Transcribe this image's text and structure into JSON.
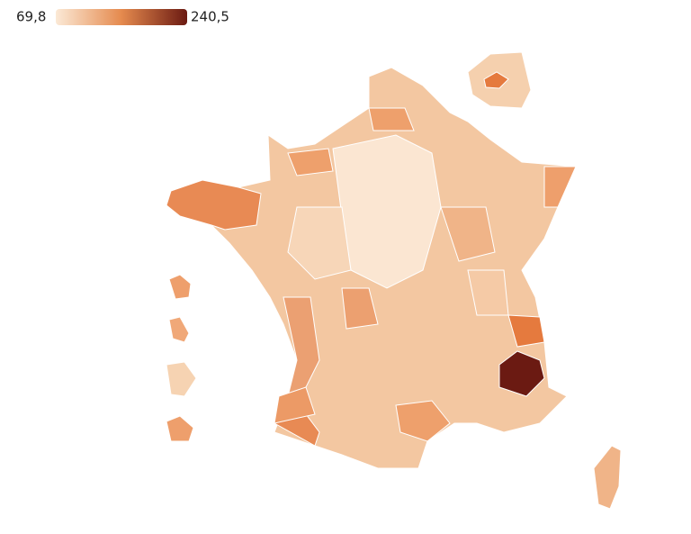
{
  "legend": {
    "min": {
      "value": 69.8,
      "label": "69,8"
    },
    "max": {
      "value": 240.5,
      "label": "240,5"
    }
  }
}
